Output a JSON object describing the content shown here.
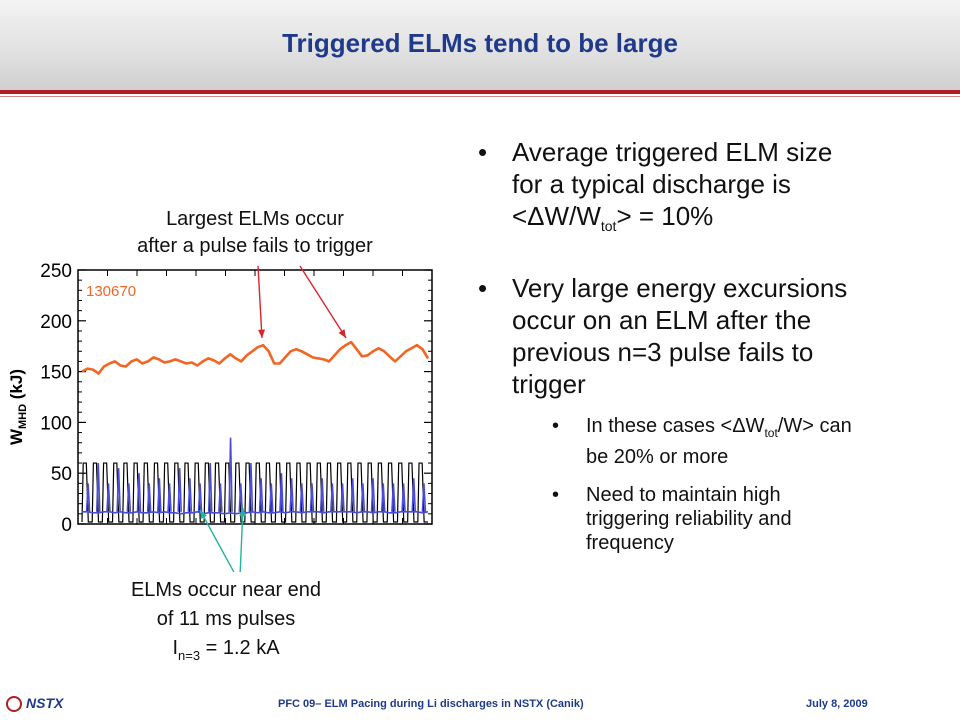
{
  "slide": {
    "title": "Triggered ELMs tend to be large"
  },
  "bullets": {
    "b1_line1": "Average triggered ELM size",
    "b1_line2": "for a typical discharge is",
    "b1_line3_pre": "<ΔW/W",
    "b1_line3_sub": "tot",
    "b1_line3_post": "> = 10%",
    "b2_line1": "Very large energy excursions",
    "b2_line2": "occur on an ELM after the",
    "b2_line3": "previous n=3 pulse fails to",
    "b2_line4": "trigger",
    "s1_pre": "In these cases <ΔW",
    "s1_sub": "tot",
    "s1_post": "/W> can",
    "s1_line2": "be 20% or more",
    "s2_line1": "Need to maintain high",
    "s2_line2": "triggering reliability and",
    "s2_line3": "frequency"
  },
  "annotations": {
    "top_line1": "Largest ELMs occur",
    "top_line2": "after a pulse fails to trigger",
    "bottom_line1": "ELMs occur near end",
    "bottom_line2": "of 11 ms pulses",
    "bottom_line3_pre": "I",
    "bottom_line3_sub": "n=3",
    "bottom_line3_post": " = 1.2 kA"
  },
  "chart_data": {
    "type": "line",
    "shot_label": "130670",
    "ylabel": "W",
    "ylabel_sub": "MHD",
    "ylabel_unit": "(kJ)",
    "ylim": [
      0,
      250
    ],
    "y_ticks": [
      "250",
      "200",
      "150",
      "100",
      "50",
      "0"
    ],
    "x_ticks_labeled": false,
    "series": [
      {
        "color": "#f26522",
        "y": [
          150,
          153,
          152,
          148,
          155,
          158,
          160,
          156,
          155,
          160,
          162,
          158,
          160,
          164,
          162,
          159,
          160,
          162,
          160,
          158,
          159,
          156,
          160,
          163,
          161,
          158,
          163,
          167,
          163,
          160,
          166,
          170,
          174,
          176,
          170,
          158,
          158,
          164,
          170,
          172,
          170,
          167,
          164,
          163,
          162,
          160,
          166,
          172,
          176,
          179,
          172,
          165,
          166,
          170,
          173,
          170,
          165,
          160,
          165,
          170,
          173,
          176,
          172,
          163
        ]
      },
      {
        "color": "#4a4cd8",
        "y": [
          12,
          12,
          11,
          11,
          12,
          12,
          11,
          12,
          11,
          11,
          12,
          11,
          11,
          12,
          11,
          12,
          11,
          11,
          10,
          11,
          11,
          12,
          10,
          11,
          11,
          11,
          10,
          11,
          10,
          11,
          11,
          12,
          11,
          12,
          11,
          11,
          12,
          11,
          12,
          12,
          11,
          12,
          12,
          12,
          11,
          12,
          12,
          12,
          12,
          12,
          11,
          12,
          12,
          11,
          12,
          12,
          11,
          11,
          12,
          12,
          12,
          12,
          11,
          12
        ],
        "spikes": [
          40,
          60,
          40,
          55,
          40,
          50,
          40,
          45,
          40,
          55,
          45,
          40,
          60,
          40,
          85,
          40,
          60,
          45,
          40,
          50,
          45,
          40,
          40,
          45,
          40,
          40,
          45,
          40,
          45,
          40,
          40,
          40,
          45,
          40
        ]
      }
    ],
    "pulses": {
      "color": "#000000",
      "high": 60,
      "low": 2,
      "count": 34
    }
  },
  "footer": {
    "logo": "NSTX",
    "center": "PFC 09– ELM Pacing during Li discharges in NSTX (Canik)",
    "date": "July 8, 2009"
  },
  "colors": {
    "title": "#1f3a8a",
    "rule": "#b01e23",
    "arrow_red": "#d7262c",
    "arrow_teal": "#27b39b"
  }
}
